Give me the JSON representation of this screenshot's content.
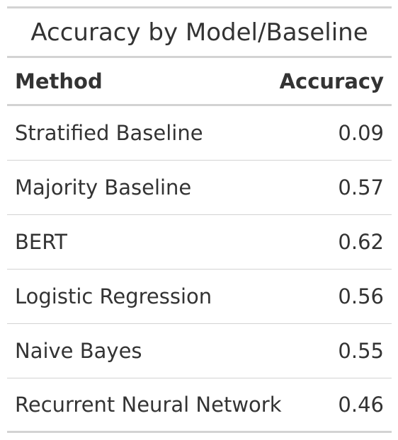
{
  "table": {
    "title": "Accuracy by Model/Baseline",
    "columns": [
      "Method",
      "Accuracy"
    ],
    "rows": [
      {
        "method": "Stratified Baseline",
        "accuracy": "0.09"
      },
      {
        "method": "Majority Baseline",
        "accuracy": "0.57"
      },
      {
        "method": "BERT",
        "accuracy": "0.62"
      },
      {
        "method": "Logistic Regression",
        "accuracy": "0.56"
      },
      {
        "method": "Naive Bayes",
        "accuracy": "0.55"
      },
      {
        "method": "Recurrent Neural Network",
        "accuracy": "0.46"
      }
    ]
  }
}
